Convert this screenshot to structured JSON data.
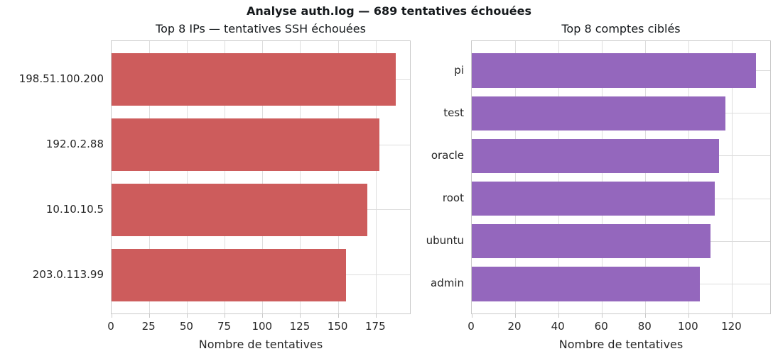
{
  "figure": {
    "suptitle": "Analyse auth.log — 689 tentatives échouées",
    "total_failed_attempts": 689,
    "background_color": "#ffffff"
  },
  "colors": {
    "left_bar": "#cd5c5c",
    "right_bar": "#9467bd",
    "grid": "#dddddd",
    "spine": "#c9c9c9",
    "tick_text": "#262626",
    "title_text": "#15191c"
  },
  "chart_data": [
    {
      "type": "bar",
      "orientation": "horizontal",
      "title": "Top 8 IPs — tentatives SSH échouées",
      "categories": [
        "198.51.100.200",
        "192.0.2.88",
        "10.10.10.5",
        "203.0.113.99"
      ],
      "values": [
        188,
        177,
        169,
        155
      ],
      "xlabel": "Nombre de tentatives",
      "xticks": [
        0,
        25,
        50,
        75,
        100,
        125,
        150,
        175
      ],
      "xlim": [
        0,
        197.4
      ],
      "bar_color": "#cd5c5c",
      "grid": true,
      "legend": "none"
    },
    {
      "type": "bar",
      "orientation": "horizontal",
      "title": "Top 8 comptes ciblés",
      "categories": [
        "pi",
        "test",
        "oracle",
        "root",
        "ubuntu",
        "admin"
      ],
      "values": [
        131,
        117,
        114,
        112,
        110,
        105
      ],
      "xlabel": "Nombre de tentatives",
      "xticks": [
        0,
        20,
        40,
        60,
        80,
        100,
        120
      ],
      "xlim": [
        0,
        137.55
      ],
      "bar_color": "#9467bd",
      "grid": true,
      "legend": "none"
    }
  ]
}
